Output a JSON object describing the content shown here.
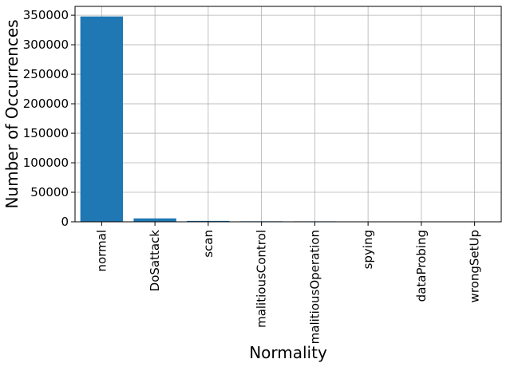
{
  "chart_data": {
    "type": "bar",
    "xlabel": "Normality",
    "ylabel": "Number of Occurrences",
    "categories": [
      "normal",
      "DoSattack",
      "scan",
      "malitiousControl",
      "malitiousOperation",
      "spying",
      "dataProbing",
      "wrongSetUp"
    ],
    "values": [
      347935,
      5780,
      1547,
      889,
      805,
      532,
      342,
      122
    ],
    "ylim": [
      0,
      365000
    ],
    "yticks": [
      0,
      50000,
      100000,
      150000,
      200000,
      250000,
      300000,
      350000
    ],
    "ytick_labels": [
      "0",
      "50000",
      "100000",
      "150000",
      "200000",
      "250000",
      "300000",
      "350000"
    ],
    "grid": true,
    "bar_color": "#1f77b4"
  }
}
